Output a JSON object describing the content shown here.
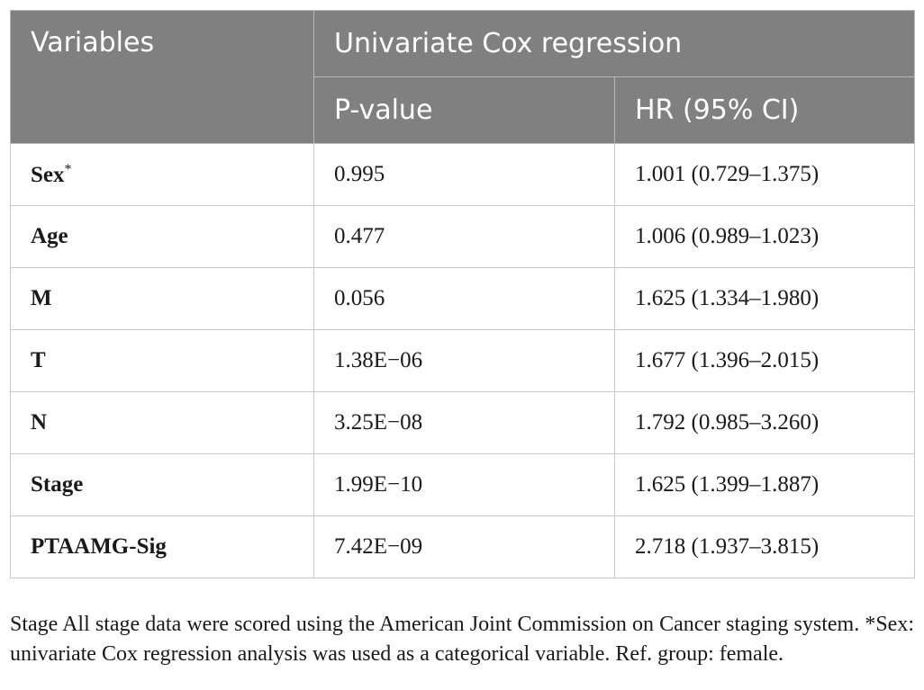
{
  "table": {
    "header": {
      "variables": "Variables",
      "group": "Univariate Cox regression",
      "pvalue": "P-value",
      "hr": "HR (95% CI)"
    },
    "rows": [
      {
        "variable": "Sex",
        "marker": "*",
        "pvalue": "0.995",
        "hr": "1.001 (0.729–1.375)"
      },
      {
        "variable": "Age",
        "marker": "",
        "pvalue": "0.477",
        "hr": "1.006 (0.989–1.023)"
      },
      {
        "variable": "M",
        "marker": "",
        "pvalue": "0.056",
        "hr": "1.625 (1.334–1.980)"
      },
      {
        "variable": "T",
        "marker": "",
        "pvalue": "1.38E−06",
        "hr": "1.677 (1.396–2.015)"
      },
      {
        "variable": "N",
        "marker": "",
        "pvalue": "3.25E−08",
        "hr": "1.792 (0.985–3.260)"
      },
      {
        "variable": "Stage",
        "marker": "",
        "pvalue": "1.99E−10",
        "hr": "1.625 (1.399–1.887)"
      },
      {
        "variable": "PTAAMG-Sig",
        "marker": "",
        "pvalue": "7.42E−09",
        "hr": "2.718 (1.937–3.815)"
      }
    ]
  },
  "footnote": "Stage All stage data were scored using the American Joint Commission on Cancer staging system. *Sex: univariate Cox regression analysis was used as a categorical variable. Ref. group: female.",
  "colors": {
    "header_bg": "#808080",
    "header_text": "#ffffff",
    "border": "#c8c8c8"
  }
}
